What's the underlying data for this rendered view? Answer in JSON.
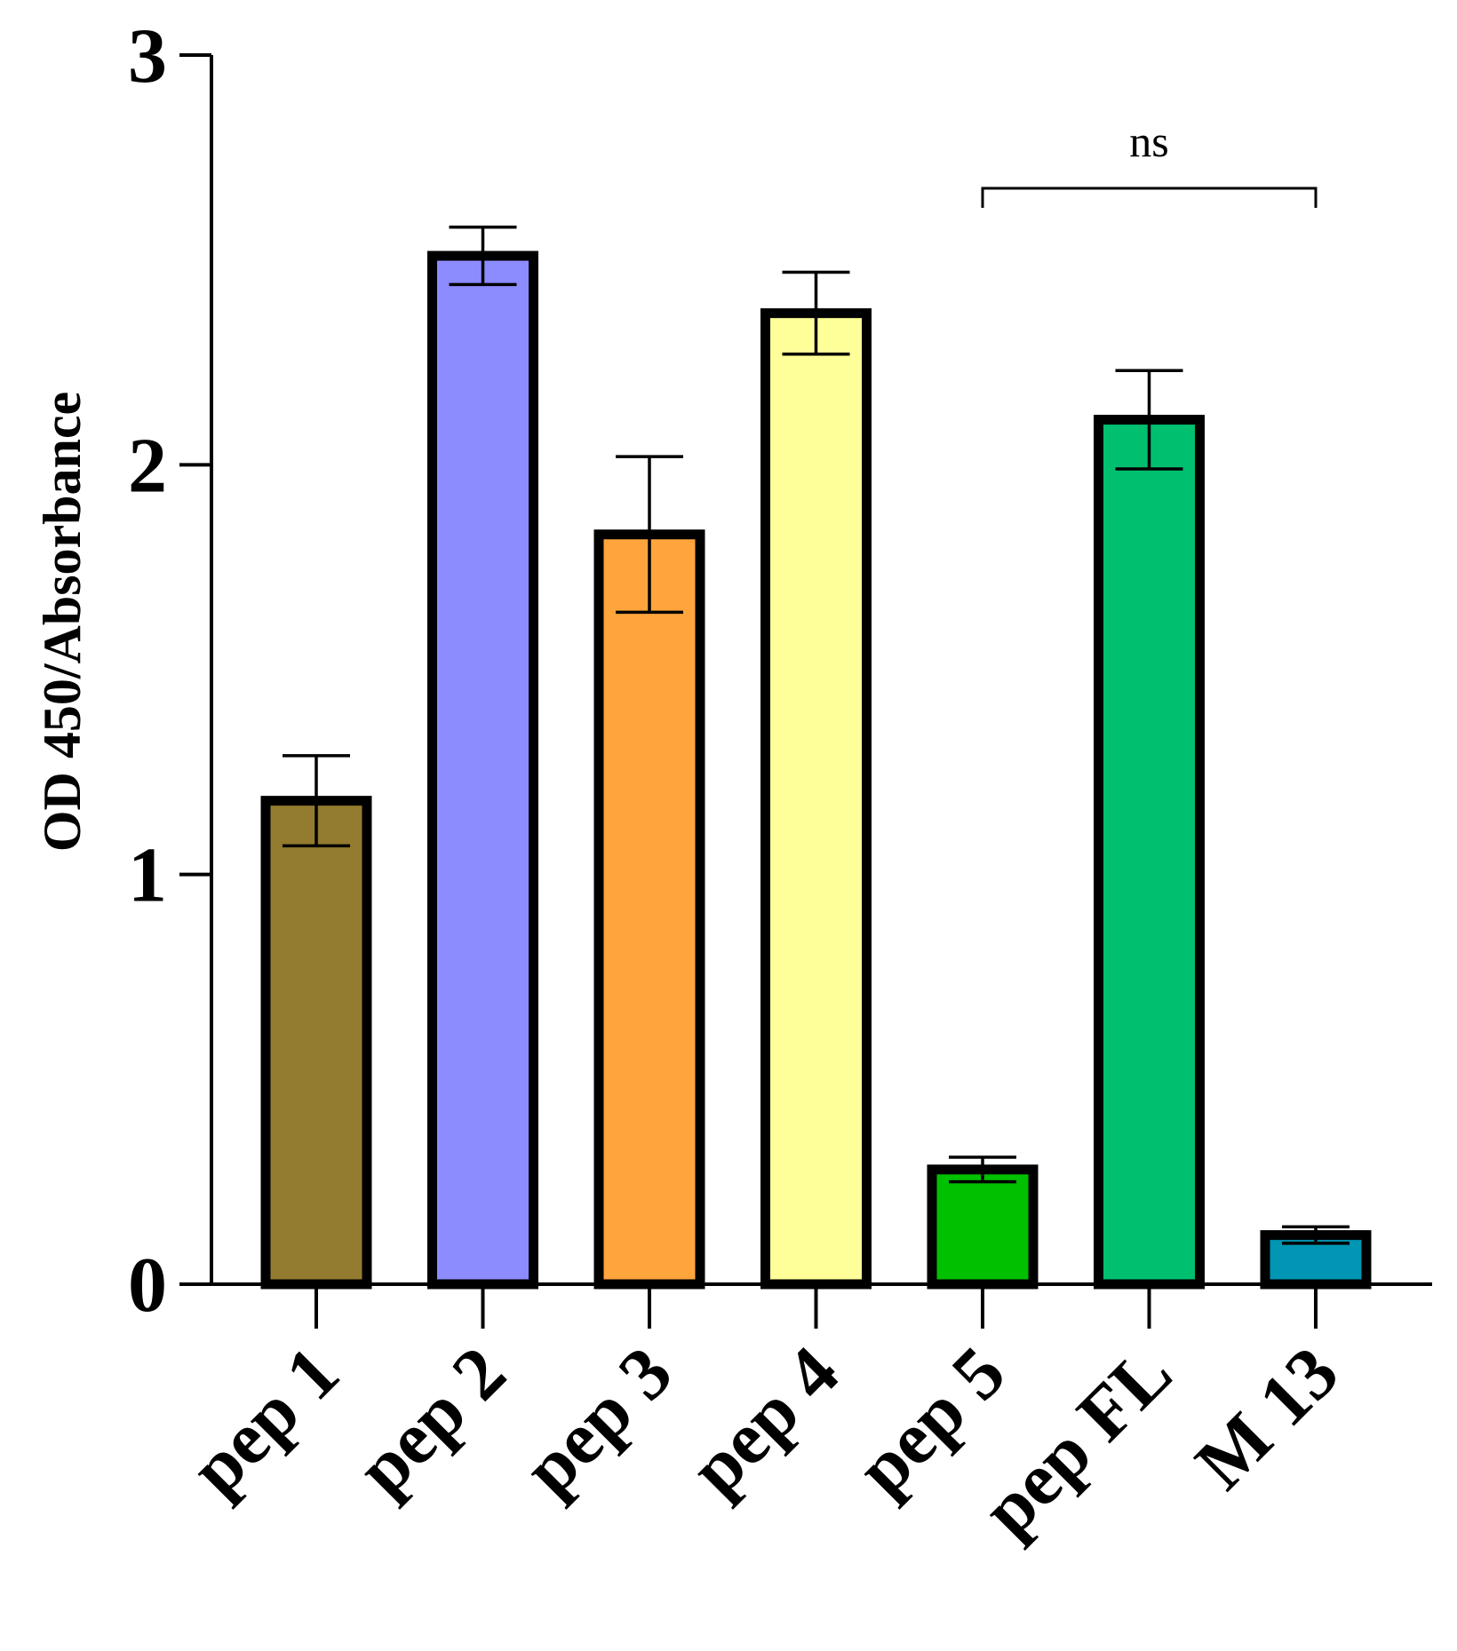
{
  "chart_data": {
    "type": "bar",
    "title": "",
    "xlabel": "",
    "ylabel": "OD 450/Absorbance",
    "ylim": [
      0,
      3
    ],
    "yticks": [
      0,
      1,
      2,
      3
    ],
    "grid": false,
    "categories": [
      "pep 1",
      "pep 2",
      "pep 3",
      "pep 4",
      "pep 5",
      "pep FL",
      "M 13"
    ],
    "values": [
      1.18,
      2.51,
      1.83,
      2.37,
      0.28,
      2.11,
      0.12
    ],
    "errors": [
      0.11,
      0.07,
      0.19,
      0.1,
      0.03,
      0.12,
      0.02
    ],
    "colors": [
      "#937b2f",
      "#8c8cff",
      "#ffa53c",
      "#ffff99",
      "#00c000",
      "#00c070",
      "#0096b4"
    ],
    "significance": [
      {
        "from": "pep 5",
        "to": "M 13",
        "label": "ns"
      }
    ]
  }
}
